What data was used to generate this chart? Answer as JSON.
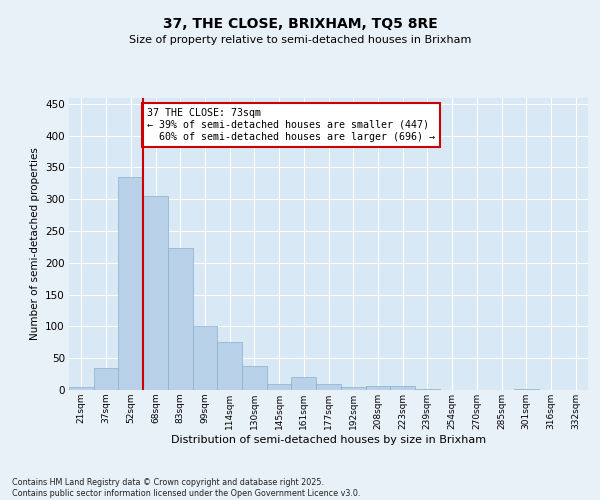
{
  "title": "37, THE CLOSE, BRIXHAM, TQ5 8RE",
  "subtitle": "Size of property relative to semi-detached houses in Brixham",
  "xlabel": "Distribution of semi-detached houses by size in Brixham",
  "ylabel": "Number of semi-detached properties",
  "categories": [
    "21sqm",
    "37sqm",
    "52sqm",
    "68sqm",
    "83sqm",
    "99sqm",
    "114sqm",
    "130sqm",
    "145sqm",
    "161sqm",
    "177sqm",
    "192sqm",
    "208sqm",
    "223sqm",
    "239sqm",
    "254sqm",
    "270sqm",
    "285sqm",
    "301sqm",
    "316sqm",
    "332sqm"
  ],
  "values": [
    4,
    34,
    335,
    305,
    223,
    101,
    75,
    38,
    10,
    20,
    10,
    4,
    6,
    7,
    1,
    0,
    0,
    0,
    1,
    0,
    0
  ],
  "bar_color": "#b8d0e8",
  "bar_edge_color": "#8ab0cc",
  "pct_smaller": 39,
  "count_smaller": 447,
  "pct_larger": 60,
  "count_larger": 696,
  "vline_x": 2.5,
  "ylim": [
    0,
    460
  ],
  "yticks": [
    0,
    50,
    100,
    150,
    200,
    250,
    300,
    350,
    400,
    450
  ],
  "background_color": "#e8f0f8",
  "plot_bg_color": "#d8e8f4",
  "grid_color": "#ffffff",
  "vline_color": "#cc0000",
  "ann_box_facecolor": "#ffffff",
  "ann_box_edgecolor": "#cc0000",
  "footnote": "Contains HM Land Registry data © Crown copyright and database right 2025.\nContains public sector information licensed under the Open Government Licence v3.0."
}
